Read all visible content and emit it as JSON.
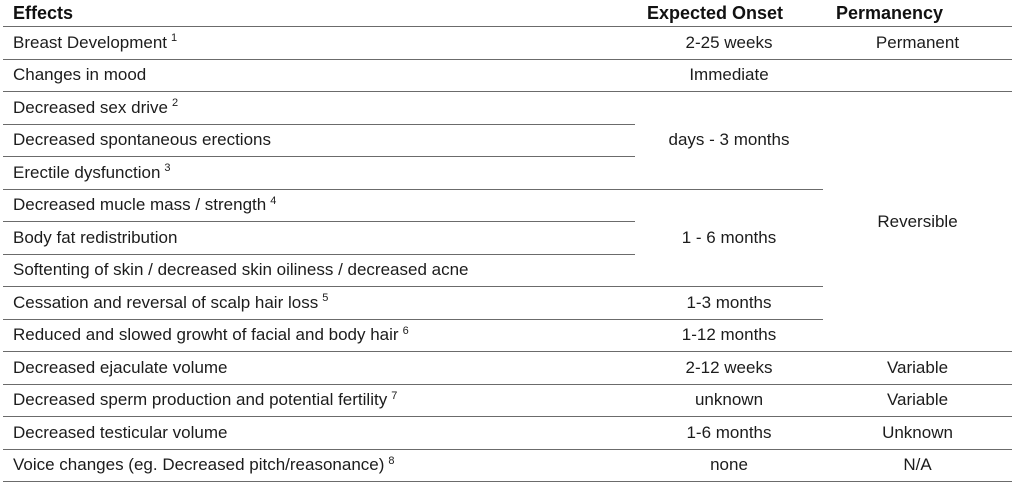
{
  "page": {
    "background": "#ffffff",
    "text_color": "#1c1c1c",
    "line_color": "#6b6b6b"
  },
  "table": {
    "columns": [
      "Effects",
      "Expected Onset",
      "Permanency"
    ],
    "rows": [
      {
        "cells": [
          {
            "col": 0,
            "text": "Breast Development",
            "footnote": "1"
          },
          {
            "col": 1,
            "text": "2-25 weeks"
          },
          {
            "col": 2,
            "text": "Permanent"
          }
        ]
      },
      {
        "cells": [
          {
            "col": 0,
            "text": "Changes in mood"
          },
          {
            "col": 1,
            "text": "Immediate"
          },
          {
            "col": 2,
            "text": ""
          }
        ]
      },
      {
        "cells": [
          {
            "col": 0,
            "text": "Decreased sex drive",
            "footnote": "2"
          },
          {
            "col": 1,
            "text": "days - 3 months",
            "rowspan": 3
          },
          {
            "col": 2,
            "text": "Reversible",
            "rowspan": 8
          }
        ]
      },
      {
        "cells": [
          {
            "col": 0,
            "text": "Decreased spontaneous erections"
          }
        ]
      },
      {
        "cells": [
          {
            "col": 0,
            "text": "Erectile dysfunction",
            "footnote": "3"
          }
        ]
      },
      {
        "cells": [
          {
            "col": 0,
            "text": "Decreased mucle mass / strength",
            "footnote": "4"
          },
          {
            "col": 1,
            "text": "1 - 6 months",
            "rowspan": 3
          }
        ]
      },
      {
        "cells": [
          {
            "col": 0,
            "text": "Body fat redistribution"
          }
        ]
      },
      {
        "cells": [
          {
            "col": 0,
            "text": "Softenting of skin / decreased skin oiliness / decreased acne"
          }
        ]
      },
      {
        "cells": [
          {
            "col": 0,
            "text": "Cessation and reversal of scalp hair loss",
            "footnote": "5"
          },
          {
            "col": 1,
            "text": "1-3 months"
          }
        ]
      },
      {
        "cells": [
          {
            "col": 0,
            "text": "Reduced and slowed growht of facial and body hair",
            "footnote": "6"
          },
          {
            "col": 1,
            "text": "1-12 months"
          }
        ]
      },
      {
        "cells": [
          {
            "col": 0,
            "text": "Decreased ejaculate volume"
          },
          {
            "col": 1,
            "text": "2-12 weeks"
          },
          {
            "col": 2,
            "text": "Variable"
          }
        ]
      },
      {
        "cells": [
          {
            "col": 0,
            "text": "Decreased sperm production and potential fertility",
            "footnote": "7"
          },
          {
            "col": 1,
            "text": "unknown"
          },
          {
            "col": 2,
            "text": "Variable"
          }
        ]
      },
      {
        "cells": [
          {
            "col": 0,
            "text": "Decreased testicular volume"
          },
          {
            "col": 1,
            "text": "1-6 months"
          },
          {
            "col": 2,
            "text": "Unknown"
          }
        ]
      },
      {
        "cells": [
          {
            "col": 0,
            "text": "Voice changes (eg. Decreased pitch/reasonance)",
            "footnote": "8"
          },
          {
            "col": 1,
            "text": "none"
          },
          {
            "col": 2,
            "text": "N/A"
          }
        ]
      }
    ]
  }
}
